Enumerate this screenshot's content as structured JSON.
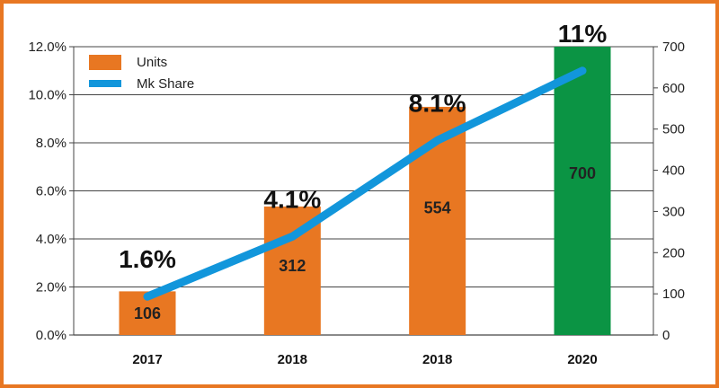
{
  "chart_data": {
    "type": "bar",
    "categories": [
      "2017",
      "2018",
      "2018",
      "2020"
    ],
    "series": [
      {
        "name": "Units",
        "type": "bar",
        "axis": "right",
        "values": [
          106,
          312,
          554,
          700
        ],
        "color": "#E87722"
      },
      {
        "name": "Mk Share",
        "type": "line",
        "axis": "left",
        "values": [
          1.6,
          4.1,
          8.1,
          11.0
        ],
        "color": "#1296DB"
      }
    ],
    "bar_colors": [
      "#E87722",
      "#E87722",
      "#E87722",
      "#0B9444"
    ],
    "bar_labels": [
      "106",
      "312",
      "554",
      "700"
    ],
    "line_labels": [
      "1.6%",
      "4.1%",
      "8.1%",
      "11%"
    ],
    "left_axis": {
      "min": 0,
      "max": 12,
      "ticks": [
        "0.0%",
        "2.0%",
        "4.0%",
        "6.0%",
        "8.0%",
        "10.0%",
        "12.0%"
      ]
    },
    "right_axis": {
      "min": 0,
      "max": 700,
      "ticks": [
        "0",
        "100",
        "200",
        "300",
        "400",
        "500",
        "600",
        "700"
      ]
    },
    "grid": true,
    "legend": {
      "position": "top-left",
      "entries": [
        "Units",
        "Mk Share"
      ]
    },
    "frame_color": "#E87722",
    "title": "",
    "xlabel": "",
    "ylabel": ""
  }
}
